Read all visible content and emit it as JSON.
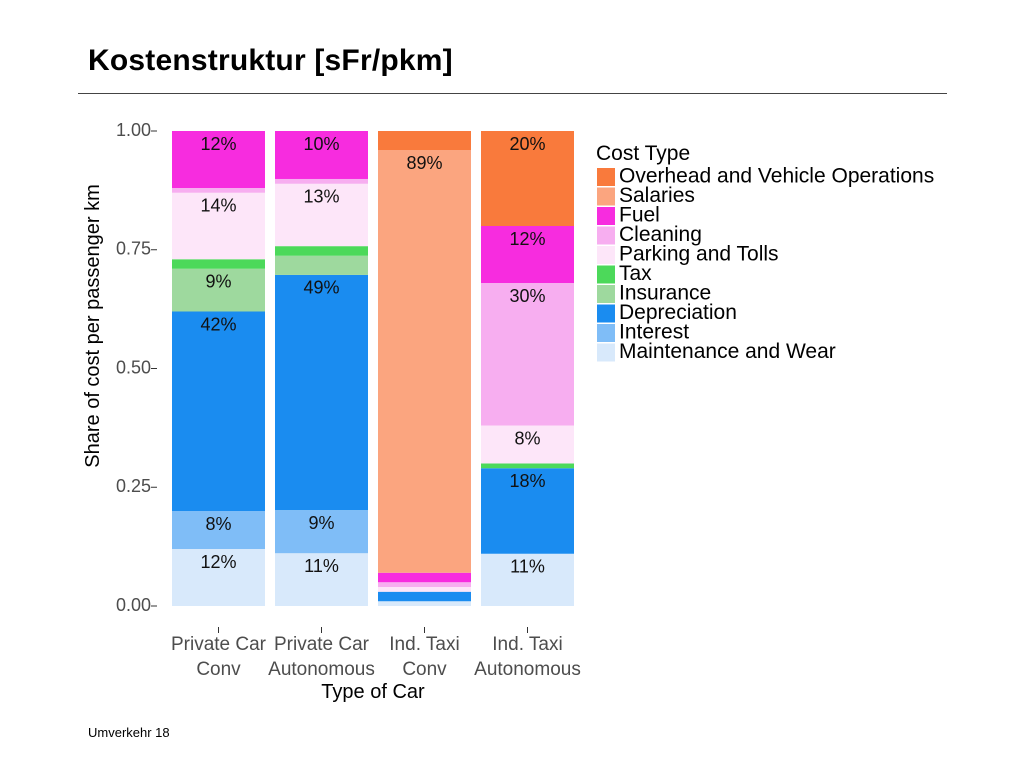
{
  "slide": {
    "title": "Kostenstruktur [sFr/pkm]",
    "footer": "Umverkehr 18"
  },
  "chart_data": {
    "type": "bar",
    "stacked": true,
    "categories": [
      [
        "Private Car",
        "Conv"
      ],
      [
        "Private Car",
        "Autonomous"
      ],
      [
        "Ind. Taxi",
        "Conv"
      ],
      [
        "Ind. Taxi",
        "Autonomous"
      ]
    ],
    "xlabel": "Type of Car",
    "ylabel": "Share of cost per passenger km",
    "ylim": [
      0,
      1
    ],
    "yticks": [
      "0.00",
      "0.25",
      "0.50",
      "0.75",
      "1.00"
    ],
    "grid": false,
    "legend": {
      "title": "Cost Type",
      "position": "right"
    },
    "series": [
      {
        "name": "Maintenance and Wear",
        "color": "#d8e9fb",
        "values": [
          0.12,
          0.11,
          0.01,
          0.11
        ]
      },
      {
        "name": "Interest",
        "color": "#7fbdf7",
        "values": [
          0.08,
          0.09,
          0.0,
          0.0
        ]
      },
      {
        "name": "Depreciation",
        "color": "#1a8cf0",
        "values": [
          0.42,
          0.49,
          0.02,
          0.18
        ]
      },
      {
        "name": "Insurance",
        "color": "#9ed99e",
        "values": [
          0.09,
          0.04,
          0.0,
          0.0
        ]
      },
      {
        "name": "Tax",
        "color": "#4cd95a",
        "values": [
          0.02,
          0.02,
          0.0,
          0.01
        ]
      },
      {
        "name": "Parking and Tolls",
        "color": "#fde6f9",
        "values": [
          0.14,
          0.13,
          0.01,
          0.08
        ]
      },
      {
        "name": "Cleaning",
        "color": "#f7aef0",
        "values": [
          0.01,
          0.01,
          0.01,
          0.3
        ]
      },
      {
        "name": "Fuel",
        "color": "#f72cdf",
        "values": [
          0.12,
          0.1,
          0.02,
          0.12
        ]
      },
      {
        "name": "Salaries",
        "color": "#fba57f",
        "values": [
          0.0,
          0.0,
          0.89,
          0.0
        ]
      },
      {
        "name": "Overhead and Vehicle Operations",
        "color": "#f97a3c",
        "values": [
          0.0,
          0.0,
          0.04,
          0.2
        ]
      }
    ],
    "data_labels": [
      [
        "12%",
        "8%",
        "42%",
        "9%",
        "",
        "14%",
        "",
        "12%",
        "",
        ""
      ],
      [
        "11%",
        "9%",
        "49%",
        "",
        "",
        "13%",
        "",
        "10%",
        "",
        ""
      ],
      [
        "",
        "",
        "",
        "",
        "",
        "",
        "",
        "",
        "89%",
        ""
      ],
      [
        "11%",
        "",
        "18%",
        "",
        "",
        "8%",
        "30%",
        "12%",
        "",
        "20%"
      ]
    ]
  }
}
